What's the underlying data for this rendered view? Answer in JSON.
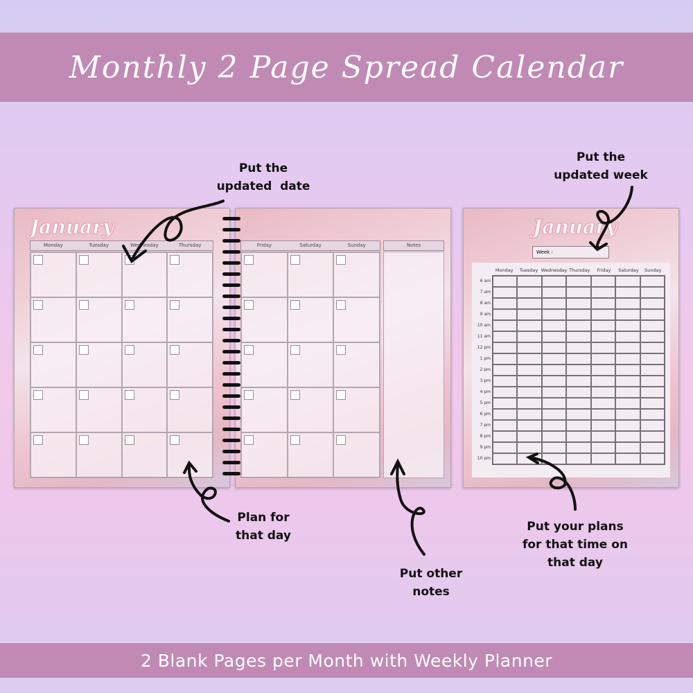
{
  "title": "Monthly 2 Page Spread Calendar",
  "footer": "2 Blank Pages per Month with Weekly Planner",
  "month": "January",
  "left_page": {
    "days": [
      "Monday",
      "Tuesday",
      "Wednesday",
      "Thursday"
    ]
  },
  "middle_page": {
    "days": [
      "Friday",
      "Saturday",
      "Sunday"
    ],
    "notes": "Notes"
  },
  "weekly_page": {
    "week_label": "Week :",
    "days": [
      "Monday",
      "Tuesday",
      "Wednesday",
      "Thursday",
      "Friday",
      "Saturday",
      "Sunday"
    ],
    "times": [
      "6 am",
      "7 am",
      "8 am",
      "9 am",
      "10 am",
      "11 am",
      "12 pm",
      "1 pm",
      "2 pm",
      "3 pm",
      "4 pm",
      "5 pm",
      "6 pm",
      "7 pm",
      "8 pm",
      "9 pm",
      "10 pm"
    ]
  },
  "annotations": {
    "date": "Put the\nupdated  date",
    "week": "Put the\nupdated week",
    "plan": "Plan for\nthat day",
    "notes": "Put other\nnotes",
    "time": "Put your plans\nfor that time on\nthat day"
  },
  "colors": {
    "banner": "#c08ab5",
    "page": "#eec3cf"
  }
}
